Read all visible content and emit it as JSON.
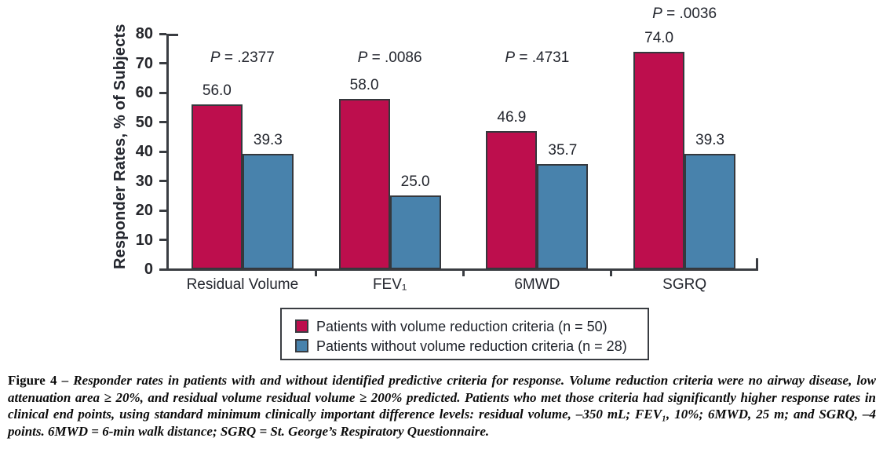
{
  "chart_data": {
    "type": "bar",
    "categories": [
      "Residual Volume",
      "FEV₁",
      "6MWD",
      "SGRQ"
    ],
    "series": [
      {
        "name": "Patients with volume reduction criteria (n = 50)",
        "color": "#BD0E4D",
        "values": [
          56.0,
          58.0,
          46.9,
          74.0
        ]
      },
      {
        "name": "Patients without volume reduction criteria (n = 28)",
        "color": "#4882AC",
        "values": [
          39.3,
          25.0,
          35.7,
          39.3
        ]
      }
    ],
    "p_symbol": "P",
    "p_equals": "=",
    "p_values": [
      ".2377",
      ".0086",
      ".4731",
      ".0036"
    ],
    "title": "",
    "xlabel": "",
    "ylabel": "Responder Rates, % of Subjects",
    "ylim": [
      0,
      80
    ],
    "ytick_step": 10,
    "value_decimals": 1,
    "grid": false,
    "legend_position": "below-axis",
    "bar_outline_color": "#35383d",
    "axis_color": "#3a3d42"
  },
  "caption": {
    "label": "Figure 4 – ",
    "body": "Responder rates in patients with and without identified predictive criteria for response. Volume reduction criteria were no airway disease, low attenuation area ≥ 20%, and residual volume residual volume ≥ 200% predicted. Patients who met those criteria had significantly higher response rates in clinical end points, using standard minimum clinically important difference levels: residual volume, –350 mL; FEV₁, 10%; 6MWD, 25 m; and SGRQ, –4 points. 6MWD = 6-min walk distance; SGRQ = St. George’s Respiratory Questionnaire."
  }
}
